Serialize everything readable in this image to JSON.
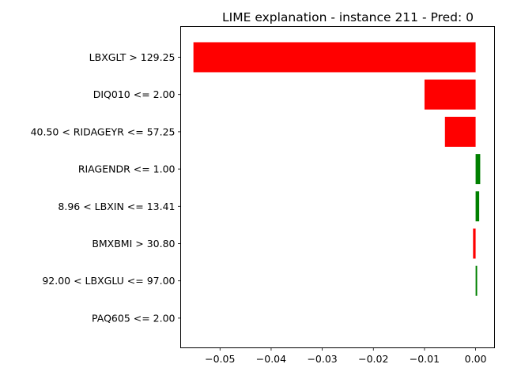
{
  "chart_data": {
    "type": "bar",
    "orientation": "horizontal",
    "title": "LIME explanation - instance 211 - Pred: 0",
    "xlabel": "",
    "ylabel": "",
    "xlim": [
      -0.0577,
      0.0037
    ],
    "grid": false,
    "legend": "none",
    "categories": [
      "LBXGLT > 129.25",
      "DIQ010 <= 2.00",
      "40.50 < RIDAGEYR <= 57.25",
      "RIAGENDR <= 1.00",
      "8.96 < LBXIN <= 13.41",
      "BMXBMI > 30.80",
      "92.00 < LBXGLU <= 97.00",
      "PAQ605 <= 2.00"
    ],
    "values": [
      -0.0552,
      -0.01,
      -0.006,
      0.0009,
      0.0007,
      -0.0005,
      0.0003,
      0.0
    ],
    "colors": {
      "negative": "#ff0000",
      "positive": "#008000"
    },
    "xticks": [
      {
        "value": -0.05,
        "label": "−0.05"
      },
      {
        "value": -0.04,
        "label": "−0.04"
      },
      {
        "value": -0.03,
        "label": "−0.03"
      },
      {
        "value": -0.02,
        "label": "−0.02"
      },
      {
        "value": -0.01,
        "label": "−0.01"
      },
      {
        "value": 0.0,
        "label": "0.00"
      }
    ]
  }
}
